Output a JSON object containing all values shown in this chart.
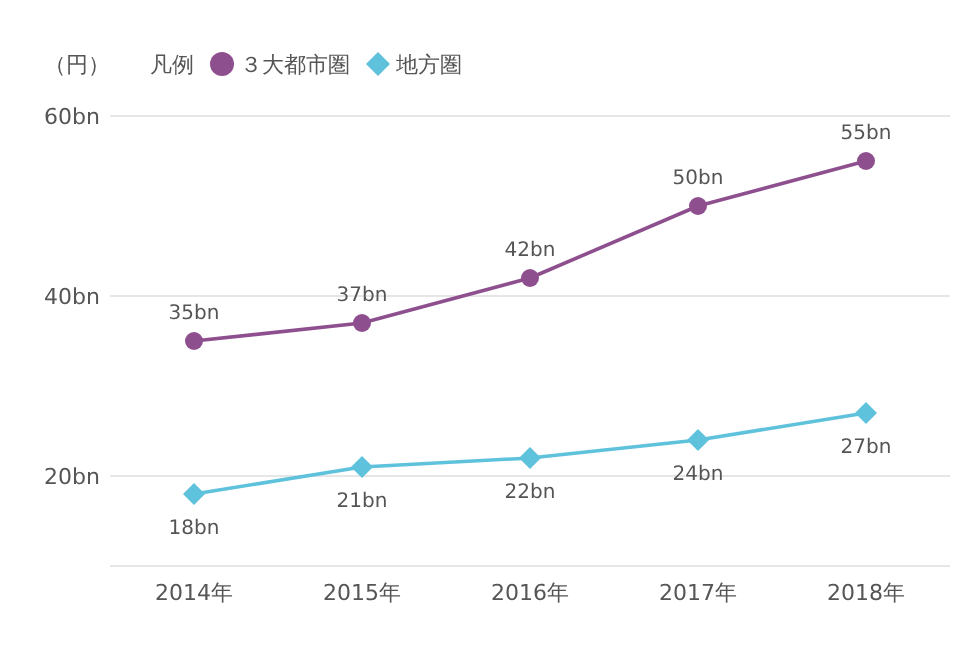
{
  "chart_data": {
    "type": "line",
    "ylabel": "（円）",
    "legend_title": "凡例",
    "legend": "top left",
    "grid": "y",
    "categories": [
      "2014年",
      "2015年",
      "2016年",
      "2017年",
      "2018年"
    ],
    "ylim": [
      10,
      60
    ],
    "yticks": [
      {
        "value": 20,
        "label": "20bn"
      },
      {
        "value": 40,
        "label": "40bn"
      },
      {
        "value": 60,
        "label": "60bn"
      }
    ],
    "line_style": "solid",
    "series": [
      {
        "name": "３大都市圏",
        "color": "#8e4f8e",
        "marker": "circle",
        "values": [
          35,
          37,
          42,
          50,
          55
        ],
        "value_labels": [
          "35bn",
          "37bn",
          "42bn",
          "50bn",
          "55bn"
        ]
      },
      {
        "name": "地方圏",
        "color": "#5fc2dd",
        "marker": "diamond",
        "values": [
          18,
          21,
          22,
          24,
          27
        ],
        "value_labels": [
          "18bn",
          "21bn",
          "22bn",
          "24bn",
          "27bn"
        ]
      }
    ]
  }
}
